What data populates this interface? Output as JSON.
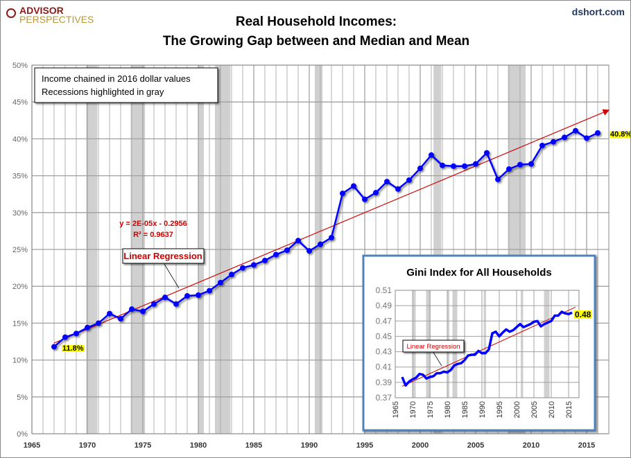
{
  "header": {
    "logo_top": "ADVISOR",
    "logo_bottom": "PERSPECTIVES",
    "source": "dshort.com",
    "title_line1": "Real Household Incomes:",
    "title_line2": "The Growing Gap between and Median and Mean"
  },
  "colors": {
    "series": "#0000ff",
    "trend": "#d00000",
    "recession": "#d0d0d0",
    "grid": "#a0a0a0",
    "highlight": "#ffff00",
    "inset_border": "#4f81bd"
  },
  "chart_data": [
    {
      "type": "line",
      "notes": [
        "Income chained in 2016 dollar values",
        "Recessions highlighted in gray"
      ],
      "xlim": [
        1965,
        2017
      ],
      "ylim": [
        0,
        50
      ],
      "x_ticks": [
        1965,
        1970,
        1975,
        1980,
        1985,
        1990,
        1995,
        2000,
        2005,
        2010,
        2015
      ],
      "y_ticks": [
        "0%",
        "5%",
        "10%",
        "15%",
        "20%",
        "25%",
        "30%",
        "35%",
        "40%",
        "45%",
        "50%"
      ],
      "grid": true,
      "x": [
        1967,
        1968,
        1969,
        1970,
        1971,
        1972,
        1973,
        1974,
        1975,
        1976,
        1977,
        1978,
        1979,
        1980,
        1981,
        1982,
        1983,
        1984,
        1985,
        1986,
        1987,
        1988,
        1989,
        1990,
        1991,
        1992,
        1993,
        1994,
        1995,
        1996,
        1997,
        1998,
        1999,
        2000,
        2001,
        2002,
        2003,
        2004,
        2005,
        2006,
        2007,
        2008,
        2009,
        2010,
        2011,
        2012,
        2013,
        2014,
        2015,
        2016
      ],
      "values": [
        11.8,
        13.1,
        13.6,
        14.4,
        15.0,
        16.3,
        15.6,
        16.9,
        16.6,
        17.6,
        18.5,
        17.6,
        18.7,
        18.8,
        19.4,
        20.5,
        21.6,
        22.5,
        22.9,
        23.5,
        24.3,
        24.9,
        26.2,
        24.8,
        25.7,
        26.6,
        32.6,
        33.6,
        31.8,
        32.7,
        34.2,
        33.2,
        34.4,
        36.0,
        37.8,
        36.4,
        36.3,
        36.3,
        36.6,
        38.1,
        34.5,
        35.9,
        36.5,
        36.6,
        39.1,
        39.6,
        40.2,
        41.1,
        40.1,
        40.8
      ],
      "first_label": "11.8%",
      "last_label": "40.8%",
      "recessions": [
        [
          1969.9,
          1970.9
        ],
        [
          1973.9,
          1975.2
        ],
        [
          1980.0,
          1980.5
        ],
        [
          1981.5,
          1982.9
        ],
        [
          1990.5,
          1991.2
        ],
        [
          2001.2,
          2001.9
        ],
        [
          2007.9,
          2009.5
        ]
      ],
      "trendline": {
        "label": "Linear Regression",
        "equation": "y = 2E-05x - 0.2956",
        "r2": "R² = 0.9637",
        "start": [
          1967,
          12.3
        ],
        "end": [
          2017,
          43.9
        ]
      }
    },
    {
      "type": "line",
      "title": "Gini Index for All Households",
      "xlim": [
        1965,
        2018
      ],
      "ylim": [
        0.37,
        0.51
      ],
      "x_ticks": [
        "1965",
        "1970",
        "1975",
        "1980",
        "1985",
        "1990",
        "1995",
        "2000",
        "2005",
        "2010",
        "2015"
      ],
      "y_ticks": [
        "0.37",
        "0.39",
        "0.41",
        "0.43",
        "0.45",
        "0.47",
        "0.49",
        "0.51"
      ],
      "x": [
        1967,
        1968,
        1969,
        1970,
        1971,
        1972,
        1973,
        1974,
        1975,
        1976,
        1977,
        1978,
        1979,
        1980,
        1981,
        1982,
        1983,
        1984,
        1985,
        1986,
        1987,
        1988,
        1989,
        1990,
        1991,
        1992,
        1993,
        1994,
        1995,
        1996,
        1997,
        1998,
        1999,
        2000,
        2001,
        2002,
        2003,
        2004,
        2005,
        2006,
        2007,
        2008,
        2009,
        2010,
        2011,
        2012,
        2013,
        2014,
        2015,
        2016
      ],
      "values": [
        0.397,
        0.386,
        0.391,
        0.394,
        0.396,
        0.401,
        0.4,
        0.395,
        0.397,
        0.398,
        0.402,
        0.402,
        0.404,
        0.403,
        0.406,
        0.412,
        0.414,
        0.415,
        0.419,
        0.425,
        0.426,
        0.426,
        0.431,
        0.428,
        0.428,
        0.433,
        0.454,
        0.456,
        0.45,
        0.455,
        0.459,
        0.456,
        0.458,
        0.462,
        0.466,
        0.462,
        0.464,
        0.466,
        0.469,
        0.47,
        0.463,
        0.466,
        0.468,
        0.47,
        0.477,
        0.477,
        0.482,
        0.48,
        0.479,
        0.481
      ],
      "last_label": "0.48",
      "recessions": [
        [
          1969.9,
          1970.9
        ],
        [
          1973.9,
          1975.2
        ],
        [
          1980.0,
          1980.5
        ],
        [
          1981.5,
          1982.9
        ],
        [
          1990.5,
          1991.2
        ],
        [
          2001.2,
          2001.9
        ],
        [
          2007.9,
          2009.5
        ]
      ],
      "trendline": {
        "label": "Linear Regression",
        "start": [
          1967,
          0.385
        ],
        "end": [
          2017,
          0.488
        ]
      }
    }
  ]
}
